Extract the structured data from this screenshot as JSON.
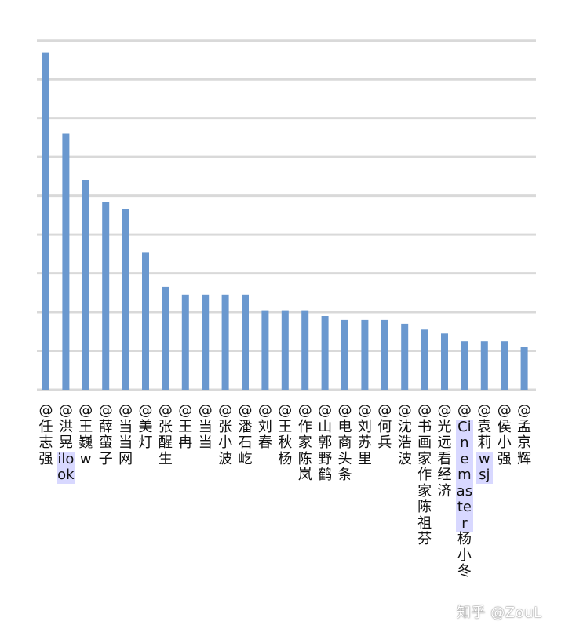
{
  "chart_data": {
    "type": "bar",
    "categories": [
      "@任志强",
      "@洪晃ilook",
      "@王巍w",
      "@薛蛮子",
      "@当当网",
      "@美灯",
      "@张醒生",
      "@王冉",
      "@当当",
      "@张小波",
      "@潘石屹",
      "@刘春",
      "@王秋杨",
      "@作家陈岚",
      "@山郭野鹤",
      "@电商头条",
      "@刘苏里",
      "@何兵",
      "@沈浩波",
      "@书画家作家陈祖芬",
      "@光远看经济",
      "@Cinemaster杨小冬",
      "@袁莉wsj",
      "@侯小强",
      "@孟京辉"
    ],
    "values": [
      8.7,
      6.6,
      5.4,
      4.85,
      4.65,
      3.55,
      2.65,
      2.45,
      2.45,
      2.45,
      2.45,
      2.05,
      2.05,
      2.05,
      1.9,
      1.8,
      1.8,
      1.8,
      1.7,
      1.55,
      1.45,
      1.25,
      1.25,
      1.25,
      1.1
    ],
    "ylim": [
      0,
      9.5
    ],
    "grid": true,
    "yticks_shown": false,
    "bar_color": "#6a98cf",
    "highlight_color": "#d8d8ff",
    "highlighted_segments": [
      "ilook",
      "Cinemaster",
      "wsj"
    ]
  },
  "watermark": "知乎 @ZouL"
}
